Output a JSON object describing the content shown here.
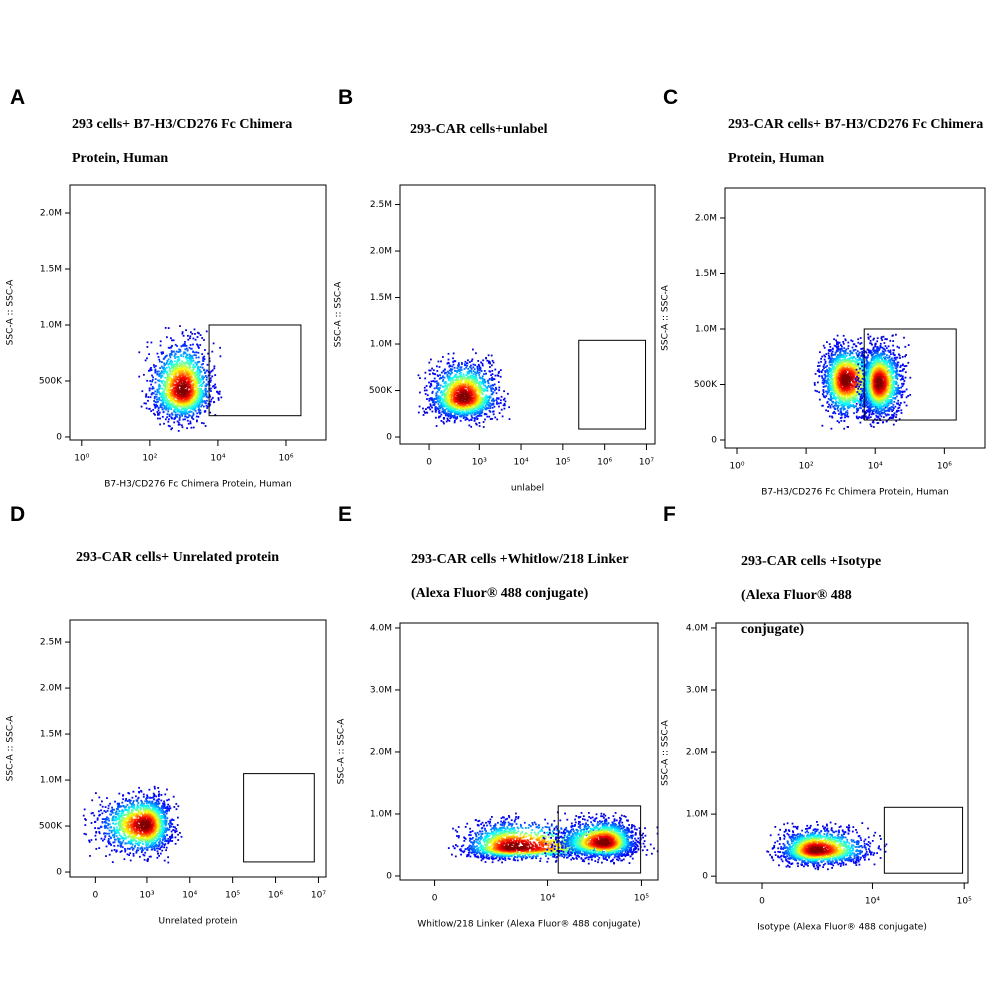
{
  "chart_data": [
    {
      "type": "scatter",
      "panel_label": "A",
      "title": "293 cells+ B7-H3/CD276 Fc Chimera Protein, Human",
      "xlabel": "B7-H3/CD276 Fc Chimera Protein, Human",
      "ylabel": "SSC-A :: SSC-A",
      "xscale": "log",
      "xlim": [
        0.45,
        15000000
      ],
      "ylim": [
        -27000,
        2250000
      ],
      "xticks": [
        {
          "value": 1,
          "label": "10⁰"
        },
        {
          "value": 100,
          "label": "10²"
        },
        {
          "value": 10000,
          "label": "10⁴"
        },
        {
          "value": 1000000,
          "label": "10⁶"
        }
      ],
      "yticks": [
        0,
        {
          "value": 500000,
          "label": "500K"
        },
        {
          "value": 1000000,
          "label": "1.0M"
        },
        {
          "value": 1500000,
          "label": "1.5M"
        },
        {
          "value": 2000000,
          "label": "2.0M"
        }
      ],
      "gate": {
        "x": [
          5500,
          2750000
        ],
        "y": [
          190000,
          1000000
        ]
      },
      "populations": [
        {
          "x": [
            60,
            9000
          ],
          "y": [
            100000,
            950000
          ],
          "peak": [
            900,
            420000
          ]
        }
      ]
    },
    {
      "type": "scatter",
      "panel_label": "B",
      "title": "293-CAR cells+unlabel",
      "xlabel": "unlabel",
      "ylabel": "SSC-A :: SSC-A",
      "xscale": "biexponential",
      "xlim": [
        -300,
        16000000
      ],
      "ylim": [
        -75000,
        2710000
      ],
      "xticks": [
        0,
        {
          "value": 1000,
          "label": "10³"
        },
        {
          "value": 10000,
          "label": "10⁴"
        },
        {
          "value": 100000,
          "label": "10⁵"
        },
        {
          "value": 1000000,
          "label": "10⁶"
        },
        {
          "value": 10000000,
          "label": "10⁷"
        }
      ],
      "yticks": [
        0,
        {
          "value": 500000,
          "label": "500K"
        },
        {
          "value": 1000000,
          "label": "1.0M"
        },
        {
          "value": 1500000,
          "label": "1.5M"
        },
        {
          "value": 2000000,
          "label": "2.0M"
        },
        {
          "value": 2500000,
          "label": "2.5M"
        }
      ],
      "gate": {
        "x": [
          240000,
          9500000
        ],
        "y": [
          86000,
          1040000
        ]
      },
      "populations": [
        {
          "x": [
            -50,
            4000
          ],
          "y": [
            150000,
            900000
          ],
          "peak": [
            400,
            430000
          ]
        }
      ]
    },
    {
      "type": "scatter",
      "panel_label": "C",
      "title": "293-CAR cells+ B7-H3/CD276 Fc Chimera Protein, Human",
      "xlabel": "B7-H3/CD276 Fc Chimera Protein, Human",
      "ylabel": "SSC-A :: SSC-A",
      "xscale": "log",
      "xlim": [
        0.45,
        15000000
      ],
      "ylim": [
        -72000,
        2270000
      ],
      "xticks": [
        {
          "value": 1,
          "label": "10⁰"
        },
        {
          "value": 100,
          "label": "10²"
        },
        {
          "value": 10000,
          "label": "10⁴"
        },
        {
          "value": 1000000,
          "label": "10⁶"
        }
      ],
      "yticks": [
        0,
        {
          "value": 500000,
          "label": "500K"
        },
        {
          "value": 1000000,
          "label": "1.0M"
        },
        {
          "value": 1500000,
          "label": "1.5M"
        },
        {
          "value": 2000000,
          "label": "2.0M"
        }
      ],
      "gate": {
        "x": [
          4800,
          2200000
        ],
        "y": [
          180000,
          1000000
        ]
      },
      "populations": [
        {
          "x": [
            200,
            20000
          ],
          "y": [
            150000,
            920000
          ],
          "peak": [
            1300,
            550000
          ]
        },
        {
          "x": [
            3000,
            80000
          ],
          "y": [
            150000,
            920000
          ],
          "peak": [
            12000,
            520000
          ]
        }
      ]
    },
    {
      "type": "scatter",
      "panel_label": "D",
      "title": "293-CAR cells+ Unrelated protein",
      "xlabel": "Unrelated protein",
      "ylabel": "SSC-A :: SSC-A",
      "xscale": "biexponential",
      "xlim": [
        -230,
        15000000
      ],
      "ylim": [
        -54000,
        2740000
      ],
      "xticks": [
        0,
        {
          "value": 1000,
          "label": "10³"
        },
        {
          "value": 10000,
          "label": "10⁴"
        },
        {
          "value": 100000,
          "label": "10⁵"
        },
        {
          "value": 1000000,
          "label": "10⁶"
        },
        {
          "value": 10000000,
          "label": "10⁷"
        }
      ],
      "yticks": [
        0,
        {
          "value": 500000,
          "label": "500K"
        },
        {
          "value": 1000000,
          "label": "1.0M"
        },
        {
          "value": 1500000,
          "label": "1.5M"
        },
        {
          "value": 2000000,
          "label": "2.0M"
        },
        {
          "value": 2500000,
          "label": "2.5M"
        }
      ],
      "gate": {
        "x": [
          180000,
          8000000
        ],
        "y": [
          110000,
          1070000
        ]
      },
      "populations": [
        {
          "x": [
            -50,
            5000
          ],
          "y": [
            150000,
            900000
          ],
          "peak": [
            900,
            520000
          ]
        }
      ]
    },
    {
      "type": "scatter",
      "panel_label": "E",
      "title": "293-CAR cells +Whitlow/218 Linker (Alexa Fluor® 488 conjugate)",
      "xlabel": "Whitlow/218 Linker (Alexa Fluor® 488 conjugate)",
      "ylabel": "SSC-A :: SSC-A",
      "xscale": "biexponential",
      "xlim": [
        -1200,
        150000
      ],
      "ylim": [
        -65000,
        4080000
      ],
      "xticks": [
        0,
        {
          "value": 10000,
          "label": "10⁴"
        },
        {
          "value": 100000,
          "label": "10⁵"
        }
      ],
      "yticks": [
        0,
        {
          "value": 1000000,
          "label": "1.0M"
        },
        {
          "value": 2000000,
          "label": "2.0M"
        },
        {
          "value": 3000000,
          "label": "3.0M"
        },
        {
          "value": 4000000,
          "label": "4.0M"
        }
      ],
      "gate": {
        "x": [
          13000,
          98000
        ],
        "y": [
          48000,
          1130000
        ]
      },
      "populations": [
        {
          "x": [
            600,
            100000
          ],
          "y": [
            250000,
            1000000
          ],
          "peak": [
            4000,
            470000
          ]
        },
        {
          "x": [
            10000,
            100000
          ],
          "y": [
            250000,
            1000000
          ],
          "peak": [
            40000,
            550000
          ]
        }
      ]
    },
    {
      "type": "scatter",
      "panel_label": "F",
      "title": "293-CAR cells +Isotype (Alexa Fluor® 488 conjugate)",
      "xlabel": "Isotype (Alexa Fluor® 488 conjugate)",
      "ylabel": "SSC-A :: SSC-A",
      "xscale": "biexponential",
      "xlim": [
        -1800,
        110000
      ],
      "ylim": [
        -110000,
        4080000
      ],
      "xticks": [
        0,
        {
          "value": 10000,
          "label": "10⁴"
        },
        {
          "value": 100000,
          "label": "10⁵"
        }
      ],
      "yticks": [
        0,
        {
          "value": 1000000,
          "label": "1.0M"
        },
        {
          "value": 2000000,
          "label": "2.0M"
        },
        {
          "value": 3000000,
          "label": "3.0M"
        },
        {
          "value": 4000000,
          "label": "4.0M"
        }
      ],
      "gate": {
        "x": [
          13500,
          96000
        ],
        "y": [
          48000,
          1110000
        ]
      },
      "populations": [
        {
          "x": [
            300,
            12000
          ],
          "y": [
            150000,
            850000
          ],
          "peak": [
            2200,
            430000
          ]
        }
      ]
    }
  ]
}
